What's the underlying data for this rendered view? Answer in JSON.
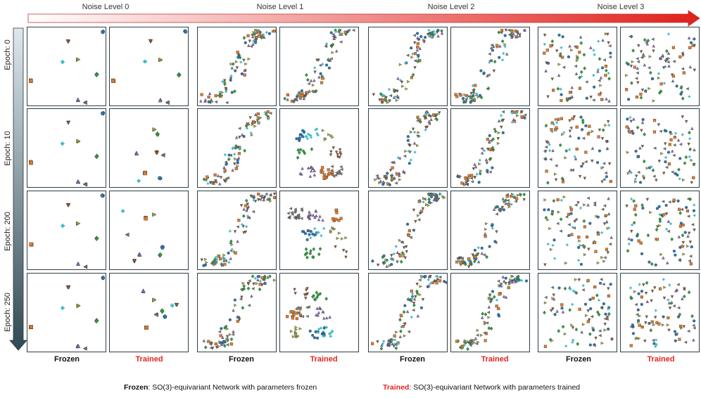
{
  "noise_levels": [
    "Noise Level 0",
    "Noise Level 1",
    "Noise Level 2",
    "Noise Level 3"
  ],
  "epochs": [
    "Epoch: 0",
    "Epoch: 10",
    "Epoch: 200",
    "Epoch: 250"
  ],
  "column_labels": {
    "frozen": "Frozen",
    "trained": "Trained"
  },
  "legend": {
    "frozen_keyword": "Frozen",
    "frozen_text": ": SO(3)-equivariant Network with parameters frozen",
    "trained_keyword": "Trained",
    "trained_text": ": SO(3)-equivariant Network with parameters trained"
  },
  "colors": {
    "blue": "#2a77b4",
    "orange": "#e07b2a",
    "green": "#2e9e3a",
    "olive": "#a5a83b",
    "purple": "#8b6bb5",
    "brown": "#8b5a3c",
    "cyan": "#3fb8c9",
    "gray": "#777777",
    "arrow_start": "#f6d6d6",
    "arrow_end": "#e0201a",
    "epoch_arrow_start": "#c8d9e3",
    "epoch_arrow_end": "#2f4a55",
    "trained_label": "#e0251f"
  },
  "chart_data": {
    "type": "scatter",
    "description_layout": "4x8 grid of 2D embedding scatter panels; rows = epochs, column pairs = noise levels (Frozen, Trained)",
    "row_labels": [
      "Epoch: 0",
      "Epoch: 10",
      "Epoch: 200",
      "Epoch: 250"
    ],
    "column_groups": [
      "Noise Level 0",
      "Noise Level 1",
      "Noise Level 2",
      "Noise Level 3"
    ],
    "column_subgroups": [
      "Frozen",
      "Trained"
    ],
    "classes": [
      {
        "marker": "circle",
        "color": "blue"
      },
      {
        "marker": "square",
        "color": "orange"
      },
      {
        "marker": "diamond",
        "color": "green"
      },
      {
        "marker": "triangle-right",
        "color": "olive"
      },
      {
        "marker": "triangle-up",
        "color": "purple"
      },
      {
        "marker": "triangle-down",
        "color": "brown"
      },
      {
        "marker": "plus",
        "color": "cyan"
      },
      {
        "marker": "triangle-left",
        "color": "gray"
      }
    ],
    "grid": false,
    "axes_ticks": false
  }
}
